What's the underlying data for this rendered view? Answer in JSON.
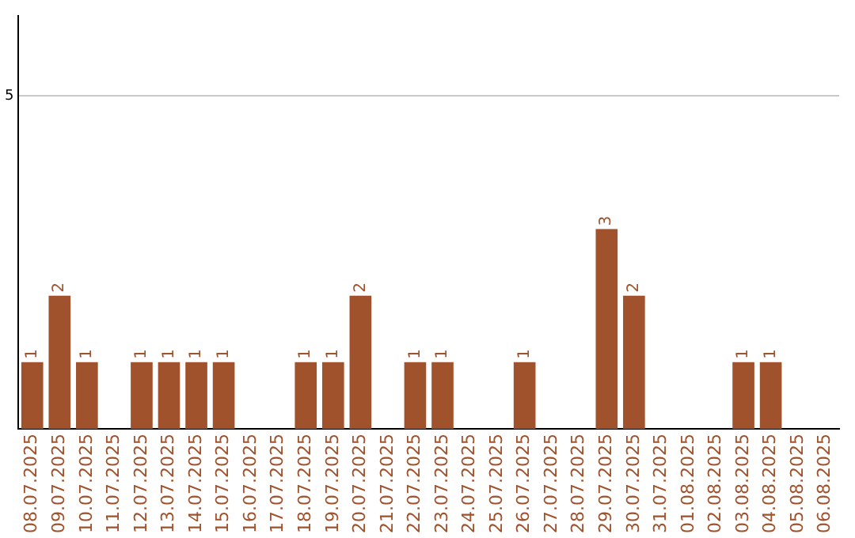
{
  "chart_data": {
    "type": "bar",
    "categories": [
      "08.07.2025",
      "09.07.2025",
      "10.07.2025",
      "11.07.2025",
      "12.07.2025",
      "13.07.2025",
      "14.07.2025",
      "15.07.2025",
      "16.07.2025",
      "17.07.2025",
      "18.07.2025",
      "19.07.2025",
      "20.07.2025",
      "21.07.2025",
      "22.07.2025",
      "23.07.2025",
      "24.07.2025",
      "25.07.2025",
      "26.07.2025",
      "27.07.2025",
      "28.07.2025",
      "29.07.2025",
      "30.07.2025",
      "31.07.2025",
      "01.08.2025",
      "02.08.2025",
      "03.08.2025",
      "04.08.2025",
      "05.08.2025",
      "06.08.2025"
    ],
    "values": [
      1,
      2,
      1,
      0,
      1,
      1,
      1,
      1,
      0,
      0,
      1,
      1,
      2,
      0,
      1,
      1,
      0,
      0,
      1,
      0,
      0,
      3,
      2,
      0,
      0,
      0,
      1,
      1,
      0,
      0
    ],
    "value_labels": [
      "1",
      "2",
      "1",
      null,
      "1",
      "1",
      "1",
      "1",
      null,
      null,
      "1",
      "1",
      "2",
      null,
      "1",
      "1",
      null,
      null,
      "1",
      null,
      null,
      "3",
      "2",
      null,
      null,
      null,
      "1",
      "1",
      null,
      null
    ],
    "color": "#a0522d",
    "ylim": [
      0,
      6.2
    ],
    "yticks": [
      5
    ],
    "grid": "y",
    "legend": false
  }
}
